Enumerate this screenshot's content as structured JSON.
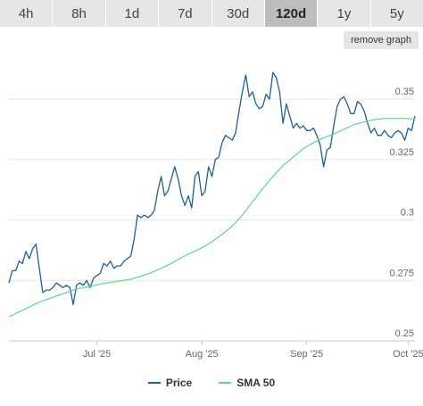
{
  "timeframe_tabs": [
    {
      "label": "4h",
      "active": false
    },
    {
      "label": "8h",
      "active": false
    },
    {
      "label": "1d",
      "active": false
    },
    {
      "label": "7d",
      "active": false
    },
    {
      "label": "30d",
      "active": false
    },
    {
      "label": "120d",
      "active": true
    },
    {
      "label": "1y",
      "active": false
    },
    {
      "label": "5y",
      "active": false
    }
  ],
  "remove_graph_label": "remove graph",
  "chart_data": {
    "type": "line",
    "ylim": [
      0.25,
      0.367
    ],
    "yticks": [
      {
        "value": 0.25,
        "label": "0.25"
      },
      {
        "value": 0.275,
        "label": "0.275"
      },
      {
        "value": 0.3,
        "label": "0.3"
      },
      {
        "value": 0.325,
        "label": "0.325"
      },
      {
        "value": 0.35,
        "label": "0.35"
      }
    ],
    "xrange": [
      "2025-06-05",
      "2025-10-03"
    ],
    "xticks": [
      {
        "date": "2025-07-01",
        "label": "Jul '25"
      },
      {
        "date": "2025-08-01",
        "label": "Aug '25"
      },
      {
        "date": "2025-09-01",
        "label": "Sep '25"
      },
      {
        "date": "2025-10-01",
        "label": "Oct '25"
      }
    ],
    "grid": true,
    "legend_position": "bottom-center",
    "series": [
      {
        "name": "Price",
        "color": "#1f5f96",
        "points": [
          [
            "2025-06-05",
            0.274
          ],
          [
            "2025-06-06",
            0.279
          ],
          [
            "2025-06-07",
            0.279
          ],
          [
            "2025-06-08",
            0.283
          ],
          [
            "2025-06-09",
            0.282
          ],
          [
            "2025-06-10",
            0.287
          ],
          [
            "2025-06-11",
            0.284
          ],
          [
            "2025-06-12",
            0.288
          ],
          [
            "2025-06-13",
            0.29
          ],
          [
            "2025-06-14",
            0.28
          ],
          [
            "2025-06-15",
            0.27
          ],
          [
            "2025-06-16",
            0.271
          ],
          [
            "2025-06-17",
            0.271
          ],
          [
            "2025-06-18",
            0.272
          ],
          [
            "2025-06-19",
            0.274
          ],
          [
            "2025-06-20",
            0.273
          ],
          [
            "2025-06-21",
            0.272
          ],
          [
            "2025-06-22",
            0.273
          ],
          [
            "2025-06-23",
            0.272
          ],
          [
            "2025-06-24",
            0.265
          ],
          [
            "2025-06-25",
            0.273
          ],
          [
            "2025-06-26",
            0.274
          ],
          [
            "2025-06-27",
            0.273
          ],
          [
            "2025-06-28",
            0.275
          ],
          [
            "2025-06-29",
            0.272
          ],
          [
            "2025-06-30",
            0.276
          ],
          [
            "2025-07-01",
            0.277
          ],
          [
            "2025-07-02",
            0.278
          ],
          [
            "2025-07-03",
            0.282
          ],
          [
            "2025-07-04",
            0.281
          ],
          [
            "2025-07-05",
            0.283
          ],
          [
            "2025-07-06",
            0.28
          ],
          [
            "2025-07-07",
            0.281
          ],
          [
            "2025-07-08",
            0.281
          ],
          [
            "2025-07-09",
            0.283
          ],
          [
            "2025-07-10",
            0.284
          ],
          [
            "2025-07-11",
            0.285
          ],
          [
            "2025-07-12",
            0.292
          ],
          [
            "2025-07-13",
            0.302
          ],
          [
            "2025-07-14",
            0.301
          ],
          [
            "2025-07-15",
            0.302
          ],
          [
            "2025-07-16",
            0.301
          ],
          [
            "2025-07-17",
            0.302
          ],
          [
            "2025-07-18",
            0.304
          ],
          [
            "2025-07-19",
            0.312
          ],
          [
            "2025-07-20",
            0.318
          ],
          [
            "2025-07-21",
            0.31
          ],
          [
            "2025-07-22",
            0.312
          ],
          [
            "2025-07-23",
            0.317
          ],
          [
            "2025-07-24",
            0.322
          ],
          [
            "2025-07-25",
            0.317
          ],
          [
            "2025-07-26",
            0.31
          ],
          [
            "2025-07-27",
            0.306
          ],
          [
            "2025-07-28",
            0.31
          ],
          [
            "2025-07-29",
            0.305
          ],
          [
            "2025-07-30",
            0.318
          ],
          [
            "2025-07-31",
            0.32
          ],
          [
            "2025-08-01",
            0.31
          ],
          [
            "2025-08-02",
            0.312
          ],
          [
            "2025-08-03",
            0.322
          ],
          [
            "2025-08-04",
            0.318
          ],
          [
            "2025-08-05",
            0.325
          ],
          [
            "2025-08-06",
            0.326
          ],
          [
            "2025-08-07",
            0.332
          ],
          [
            "2025-08-08",
            0.335
          ],
          [
            "2025-08-09",
            0.334
          ],
          [
            "2025-08-10",
            0.333
          ],
          [
            "2025-08-11",
            0.336
          ],
          [
            "2025-08-12",
            0.345
          ],
          [
            "2025-08-13",
            0.353
          ],
          [
            "2025-08-14",
            0.36
          ],
          [
            "2025-08-15",
            0.351
          ],
          [
            "2025-08-16",
            0.353
          ],
          [
            "2025-08-17",
            0.348
          ],
          [
            "2025-08-18",
            0.346
          ],
          [
            "2025-08-19",
            0.347
          ],
          [
            "2025-08-20",
            0.352
          ],
          [
            "2025-08-21",
            0.35
          ],
          [
            "2025-08-22",
            0.361
          ],
          [
            "2025-08-23",
            0.359
          ],
          [
            "2025-08-24",
            0.353
          ],
          [
            "2025-08-25",
            0.34
          ],
          [
            "2025-08-26",
            0.348
          ],
          [
            "2025-08-27",
            0.343
          ],
          [
            "2025-08-28",
            0.338
          ],
          [
            "2025-08-29",
            0.34
          ],
          [
            "2025-08-30",
            0.338
          ],
          [
            "2025-08-31",
            0.339
          ],
          [
            "2025-09-01",
            0.337
          ],
          [
            "2025-09-02",
            0.337
          ],
          [
            "2025-09-03",
            0.338
          ],
          [
            "2025-09-04",
            0.335
          ],
          [
            "2025-09-05",
            0.331
          ],
          [
            "2025-09-06",
            0.322
          ],
          [
            "2025-09-07",
            0.329
          ],
          [
            "2025-09-08",
            0.33
          ],
          [
            "2025-09-09",
            0.339
          ],
          [
            "2025-09-10",
            0.347
          ],
          [
            "2025-09-11",
            0.35
          ],
          [
            "2025-09-12",
            0.351
          ],
          [
            "2025-09-13",
            0.348
          ],
          [
            "2025-09-14",
            0.344
          ],
          [
            "2025-09-15",
            0.344
          ],
          [
            "2025-09-16",
            0.349
          ],
          [
            "2025-09-17",
            0.348
          ],
          [
            "2025-09-18",
            0.345
          ],
          [
            "2025-09-19",
            0.34
          ],
          [
            "2025-09-20",
            0.336
          ],
          [
            "2025-09-21",
            0.338
          ],
          [
            "2025-09-22",
            0.335
          ],
          [
            "2025-09-23",
            0.335
          ],
          [
            "2025-09-24",
            0.337
          ],
          [
            "2025-09-25",
            0.335
          ],
          [
            "2025-09-26",
            0.334
          ],
          [
            "2025-09-27",
            0.336
          ],
          [
            "2025-09-28",
            0.337
          ],
          [
            "2025-09-29",
            0.336
          ],
          [
            "2025-09-30",
            0.333
          ],
          [
            "2025-10-01",
            0.338
          ],
          [
            "2025-10-02",
            0.337
          ],
          [
            "2025-10-03",
            0.343
          ]
        ]
      },
      {
        "name": "SMA 50",
        "color": "#5fd68a",
        "points": [
          [
            "2025-06-05",
            0.26
          ],
          [
            "2025-06-08",
            0.262
          ],
          [
            "2025-06-11",
            0.264
          ],
          [
            "2025-06-14",
            0.266
          ],
          [
            "2025-06-17",
            0.2675
          ],
          [
            "2025-06-20",
            0.269
          ],
          [
            "2025-06-23",
            0.2705
          ],
          [
            "2025-06-26",
            0.2718
          ],
          [
            "2025-06-29",
            0.2725
          ],
          [
            "2025-07-02",
            0.2735
          ],
          [
            "2025-07-05",
            0.2742
          ],
          [
            "2025-07-08",
            0.2748
          ],
          [
            "2025-07-11",
            0.2755
          ],
          [
            "2025-07-14",
            0.2768
          ],
          [
            "2025-07-17",
            0.2782
          ],
          [
            "2025-07-20",
            0.28
          ],
          [
            "2025-07-23",
            0.282
          ],
          [
            "2025-07-26",
            0.2845
          ],
          [
            "2025-07-29",
            0.2865
          ],
          [
            "2025-08-01",
            0.2885
          ],
          [
            "2025-08-04",
            0.291
          ],
          [
            "2025-08-07",
            0.294
          ],
          [
            "2025-08-10",
            0.2975
          ],
          [
            "2025-08-13",
            0.302
          ],
          [
            "2025-08-16",
            0.3075
          ],
          [
            "2025-08-19",
            0.313
          ],
          [
            "2025-08-22",
            0.318
          ],
          [
            "2025-08-25",
            0.3225
          ],
          [
            "2025-08-28",
            0.326
          ],
          [
            "2025-08-31",
            0.3295
          ],
          [
            "2025-09-03",
            0.332
          ],
          [
            "2025-09-06",
            0.334
          ],
          [
            "2025-09-09",
            0.3355
          ],
          [
            "2025-09-12",
            0.3375
          ],
          [
            "2025-09-15",
            0.3395
          ],
          [
            "2025-09-18",
            0.3405
          ],
          [
            "2025-09-21",
            0.3415
          ],
          [
            "2025-09-24",
            0.342
          ],
          [
            "2025-09-27",
            0.342
          ],
          [
            "2025-09-30",
            0.342
          ],
          [
            "2025-10-03",
            0.3418
          ]
        ]
      }
    ]
  }
}
